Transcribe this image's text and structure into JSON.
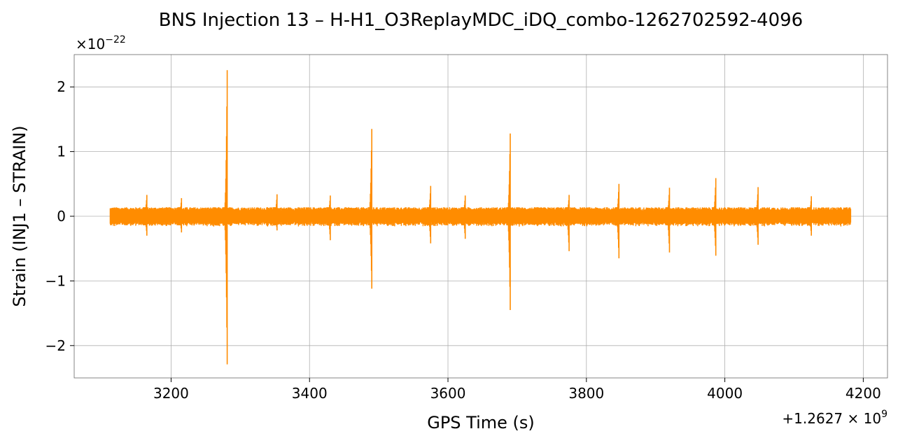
{
  "chart_data": {
    "type": "line",
    "title": "BNS Injection 13 – H-H1_O3ReplayMDC_iDQ_combo-1262702592-4096",
    "xlabel": "GPS Time (s)",
    "ylabel": "Strain (INJ1 – STRAIN)",
    "x_offset_text": "+1.2627 × 10^9",
    "x_offset_base": "+1.2627",
    "x_offset_exp": "9",
    "y_multiplier_text": "×10^−22",
    "y_multiplier_base": "×10",
    "y_multiplier_exp": "−22",
    "xlim": [
      3060,
      4235
    ],
    "ylim": [
      -2.5,
      2.5
    ],
    "x_ticks": [
      3200,
      3400,
      3600,
      3800,
      4000,
      4200
    ],
    "x_tick_labels": [
      "3200",
      "3400",
      "3600",
      "3800",
      "4000",
      "4200"
    ],
    "y_ticks": [
      -2,
      -1,
      0,
      1,
      2
    ],
    "y_tick_labels": [
      "−2",
      "−1",
      "0",
      "1",
      "2"
    ],
    "grid": true,
    "series": [
      {
        "color": "#ff8c00",
        "x_range": [
          3112,
          4182
        ],
        "background_amplitude": 0.14,
        "glitches": [
          {
            "x": 3165,
            "max": 0.33,
            "min": -0.3
          },
          {
            "x": 3215,
            "max": 0.28,
            "min": -0.25
          },
          {
            "x": 3281,
            "max": 2.26,
            "min": -2.29
          },
          {
            "x": 3353,
            "max": 0.34,
            "min": -0.22
          },
          {
            "x": 3430,
            "max": 0.32,
            "min": -0.37
          },
          {
            "x": 3490,
            "max": 1.35,
            "min": -1.12
          },
          {
            "x": 3575,
            "max": 0.47,
            "min": -0.42
          },
          {
            "x": 3625,
            "max": 0.32,
            "min": -0.35
          },
          {
            "x": 3690,
            "max": 1.28,
            "min": -1.45
          },
          {
            "x": 3775,
            "max": 0.33,
            "min": -0.54
          },
          {
            "x": 3847,
            "max": 0.5,
            "min": -0.65
          },
          {
            "x": 3920,
            "max": 0.44,
            "min": -0.56
          },
          {
            "x": 3987,
            "max": 0.59,
            "min": -0.61
          },
          {
            "x": 4048,
            "max": 0.45,
            "min": -0.44
          },
          {
            "x": 4125,
            "max": 0.31,
            "min": -0.3
          }
        ]
      }
    ]
  }
}
